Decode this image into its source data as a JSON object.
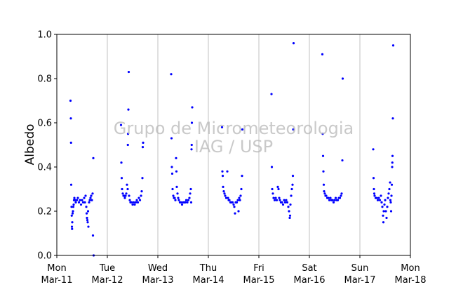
{
  "chart_data": {
    "type": "scatter",
    "title": "",
    "ylabel": "Albedo",
    "xlabel": "",
    "ylim": [
      0,
      1.0
    ],
    "xlim": [
      "2019-03-11",
      "2019-03-18"
    ],
    "yticks": [
      "0.0",
      "0.2",
      "0.4",
      "0.6",
      "0.8",
      "1.0"
    ],
    "xticks": [
      {
        "day": "Mon",
        "date": "Mar-11"
      },
      {
        "day": "Tue",
        "date": "Mar-12"
      },
      {
        "day": "Wed",
        "date": "Mar-13"
      },
      {
        "day": "Thu",
        "date": "Mar-14"
      },
      {
        "day": "Fri",
        "date": "Mar-15"
      },
      {
        "day": "Sat",
        "date": "Mar-16"
      },
      {
        "day": "Sun",
        "date": "Mar-17"
      },
      {
        "day": "Mon",
        "date": "Mar-18"
      }
    ],
    "grid": "vertical lines at day boundaries",
    "watermark": [
      "Grupo de Micrometeorologia",
      "IAG / USP"
    ],
    "marker_color": "#0000ff",
    "series": [
      {
        "values": [
          [
            "2019-03-11 06:30",
            0.7
          ],
          [
            "2019-03-11 06:40",
            0.62
          ],
          [
            "2019-03-11 06:45",
            0.51
          ],
          [
            "2019-03-11 06:50",
            0.32
          ],
          [
            "2019-03-11 07:00",
            0.22
          ],
          [
            "2019-03-11 07:05",
            0.18
          ],
          [
            "2019-03-11 07:10",
            0.13
          ],
          [
            "2019-03-11 07:15",
            0.12
          ],
          [
            "2019-03-11 07:20",
            0.15
          ],
          [
            "2019-03-11 07:30",
            0.19
          ],
          [
            "2019-03-11 07:40",
            0.2
          ],
          [
            "2019-03-11 07:50",
            0.22
          ],
          [
            "2019-03-11 08:00",
            0.23
          ],
          [
            "2019-03-11 08:10",
            0.25
          ],
          [
            "2019-03-11 08:20",
            0.26
          ],
          [
            "2019-03-11 08:40",
            0.25
          ],
          [
            "2019-03-11 09:00",
            0.24
          ],
          [
            "2019-03-11 09:30",
            0.25
          ],
          [
            "2019-03-11 10:00",
            0.26
          ],
          [
            "2019-03-11 10:30",
            0.24
          ],
          [
            "2019-03-11 11:00",
            0.25
          ],
          [
            "2019-03-11 11:30",
            0.23
          ],
          [
            "2019-03-11 12:00",
            0.25
          ],
          [
            "2019-03-11 12:30",
            0.24
          ],
          [
            "2019-03-11 13:00",
            0.26
          ],
          [
            "2019-03-11 13:20",
            0.24
          ],
          [
            "2019-03-11 13:40",
            0.27
          ],
          [
            "2019-03-11 14:00",
            0.22
          ],
          [
            "2019-03-11 14:10",
            0.19
          ],
          [
            "2019-03-11 14:20",
            0.17
          ],
          [
            "2019-03-11 14:30",
            0.16
          ],
          [
            "2019-03-11 14:40",
            0.15
          ],
          [
            "2019-03-11 14:50",
            0.2
          ],
          [
            "2019-03-11 15:00",
            0.13
          ],
          [
            "2019-03-11 15:20",
            0.24
          ],
          [
            "2019-03-11 15:40",
            0.25
          ],
          [
            "2019-03-11 16:00",
            0.26
          ],
          [
            "2019-03-11 16:20",
            0.27
          ],
          [
            "2019-03-11 16:40",
            0.25
          ],
          [
            "2019-03-11 17:00",
            0.28
          ],
          [
            "2019-03-11 17:10",
            0.09
          ],
          [
            "2019-03-11 17:20",
            0.44
          ],
          [
            "2019-03-11 17:30",
            0.0
          ],
          [
            "2019-03-12 06:30",
            0.59
          ],
          [
            "2019-03-12 06:40",
            0.42
          ],
          [
            "2019-03-12 06:50",
            0.35
          ],
          [
            "2019-03-12 07:00",
            0.3
          ],
          [
            "2019-03-12 07:20",
            0.28
          ],
          [
            "2019-03-12 07:40",
            0.27
          ],
          [
            "2019-03-12 08:00",
            0.27
          ],
          [
            "2019-03-12 08:20",
            0.26
          ],
          [
            "2019-03-12 08:40",
            0.27
          ],
          [
            "2019-03-12 09:00",
            0.28
          ],
          [
            "2019-03-12 09:20",
            0.32
          ],
          [
            "2019-03-12 09:40",
            0.3
          ],
          [
            "2019-03-12 09:45",
            0.5
          ],
          [
            "2019-03-12 09:50",
            0.55
          ],
          [
            "2019-03-12 10:00",
            0.66
          ],
          [
            "2019-03-12 10:10",
            0.83
          ],
          [
            "2019-03-12 10:20",
            0.27
          ],
          [
            "2019-03-12 10:40",
            0.25
          ],
          [
            "2019-03-12 11:00",
            0.24
          ],
          [
            "2019-03-12 11:30",
            0.24
          ],
          [
            "2019-03-12 12:00",
            0.23
          ],
          [
            "2019-03-12 12:30",
            0.24
          ],
          [
            "2019-03-12 13:00",
            0.23
          ],
          [
            "2019-03-12 13:30",
            0.24
          ],
          [
            "2019-03-12 14:00",
            0.25
          ],
          [
            "2019-03-12 14:30",
            0.24
          ],
          [
            "2019-03-12 15:00",
            0.26
          ],
          [
            "2019-03-12 15:30",
            0.25
          ],
          [
            "2019-03-12 16:00",
            0.27
          ],
          [
            "2019-03-12 16:20",
            0.29
          ],
          [
            "2019-03-12 16:40",
            0.35
          ],
          [
            "2019-03-12 16:50",
            0.49
          ],
          [
            "2019-03-12 17:00",
            0.51
          ],
          [
            "2019-03-13 06:20",
            0.82
          ],
          [
            "2019-03-13 06:30",
            0.53
          ],
          [
            "2019-03-13 06:40",
            0.4
          ],
          [
            "2019-03-13 06:50",
            0.37
          ],
          [
            "2019-03-13 07:00",
            0.3
          ],
          [
            "2019-03-13 07:20",
            0.27
          ],
          [
            "2019-03-13 07:40",
            0.26
          ],
          [
            "2019-03-13 08:00",
            0.26
          ],
          [
            "2019-03-13 08:20",
            0.25
          ],
          [
            "2019-03-13 08:40",
            0.44
          ],
          [
            "2019-03-13 08:50",
            0.38
          ],
          [
            "2019-03-13 09:00",
            0.31
          ],
          [
            "2019-03-13 09:20",
            0.28
          ],
          [
            "2019-03-13 09:40",
            0.26
          ],
          [
            "2019-03-13 10:00",
            0.25
          ],
          [
            "2019-03-13 10:30",
            0.24
          ],
          [
            "2019-03-13 11:00",
            0.24
          ],
          [
            "2019-03-13 11:30",
            0.23
          ],
          [
            "2019-03-13 12:00",
            0.24
          ],
          [
            "2019-03-13 12:30",
            0.24
          ],
          [
            "2019-03-13 13:00",
            0.24
          ],
          [
            "2019-03-13 13:30",
            0.25
          ],
          [
            "2019-03-13 14:00",
            0.24
          ],
          [
            "2019-03-13 14:30",
            0.25
          ],
          [
            "2019-03-13 15:00",
            0.26
          ],
          [
            "2019-03-13 15:20",
            0.28
          ],
          [
            "2019-03-13 15:40",
            0.3
          ],
          [
            "2019-03-13 15:50",
            0.24
          ],
          [
            "2019-03-13 16:00",
            0.48
          ],
          [
            "2019-03-13 16:05",
            0.5
          ],
          [
            "2019-03-13 16:10",
            0.6
          ],
          [
            "2019-03-13 16:20",
            0.67
          ],
          [
            "2019-03-14 06:30",
            0.58
          ],
          [
            "2019-03-14 06:40",
            0.38
          ],
          [
            "2019-03-14 06:50",
            0.36
          ],
          [
            "2019-03-14 07:00",
            0.31
          ],
          [
            "2019-03-14 07:20",
            0.29
          ],
          [
            "2019-03-14 07:40",
            0.28
          ],
          [
            "2019-03-14 08:00",
            0.27
          ],
          [
            "2019-03-14 08:30",
            0.26
          ],
          [
            "2019-03-14 09:00",
            0.38
          ],
          [
            "2019-03-14 09:20",
            0.26
          ],
          [
            "2019-03-14 09:40",
            0.25
          ],
          [
            "2019-03-14 10:00",
            0.25
          ],
          [
            "2019-03-14 10:30",
            0.24
          ],
          [
            "2019-03-14 11:00",
            0.24
          ],
          [
            "2019-03-14 11:30",
            0.24
          ],
          [
            "2019-03-14 12:00",
            0.23
          ],
          [
            "2019-03-14 12:20",
            0.22
          ],
          [
            "2019-03-14 12:40",
            0.19
          ],
          [
            "2019-03-14 13:00",
            0.24
          ],
          [
            "2019-03-14 13:30",
            0.24
          ],
          [
            "2019-03-14 14:00",
            0.25
          ],
          [
            "2019-03-14 14:20",
            0.2
          ],
          [
            "2019-03-14 14:40",
            0.26
          ],
          [
            "2019-03-14 15:00",
            0.25
          ],
          [
            "2019-03-14 15:20",
            0.27
          ],
          [
            "2019-03-14 15:40",
            0.3
          ],
          [
            "2019-03-14 16:00",
            0.36
          ],
          [
            "2019-03-14 16:10",
            0.57
          ],
          [
            "2019-03-15 06:00",
            0.73
          ],
          [
            "2019-03-15 06:10",
            0.4
          ],
          [
            "2019-03-15 06:20",
            0.3
          ],
          [
            "2019-03-15 06:40",
            0.28
          ],
          [
            "2019-03-15 07:00",
            0.26
          ],
          [
            "2019-03-15 07:30",
            0.25
          ],
          [
            "2019-03-15 08:00",
            0.26
          ],
          [
            "2019-03-15 08:30",
            0.25
          ],
          [
            "2019-03-15 09:00",
            0.31
          ],
          [
            "2019-03-15 09:20",
            0.3
          ],
          [
            "2019-03-15 09:40",
            0.26
          ],
          [
            "2019-03-15 10:00",
            0.25
          ],
          [
            "2019-03-15 10:30",
            0.24
          ],
          [
            "2019-03-15 11:00",
            0.24
          ],
          [
            "2019-03-15 11:30",
            0.23
          ],
          [
            "2019-03-15 12:00",
            0.25
          ],
          [
            "2019-03-15 12:30",
            0.24
          ],
          [
            "2019-03-15 13:00",
            0.25
          ],
          [
            "2019-03-15 13:30",
            0.24
          ],
          [
            "2019-03-15 14:00",
            0.22
          ],
          [
            "2019-03-15 14:20",
            0.2
          ],
          [
            "2019-03-15 14:40",
            0.17
          ],
          [
            "2019-03-15 14:50",
            0.18
          ],
          [
            "2019-03-15 15:00",
            0.23
          ],
          [
            "2019-03-15 15:20",
            0.27
          ],
          [
            "2019-03-15 15:40",
            0.3
          ],
          [
            "2019-03-15 16:00",
            0.32
          ],
          [
            "2019-03-15 16:10",
            0.36
          ],
          [
            "2019-03-15 16:20",
            0.57
          ],
          [
            "2019-03-15 16:30",
            0.96
          ],
          [
            "2019-03-16 06:10",
            0.91
          ],
          [
            "2019-03-16 06:20",
            0.55
          ],
          [
            "2019-03-16 06:30",
            0.45
          ],
          [
            "2019-03-16 06:40",
            0.38
          ],
          [
            "2019-03-16 06:50",
            0.32
          ],
          [
            "2019-03-16 07:00",
            0.29
          ],
          [
            "2019-03-16 07:20",
            0.28
          ],
          [
            "2019-03-16 07:40",
            0.27
          ],
          [
            "2019-03-16 08:00",
            0.27
          ],
          [
            "2019-03-16 08:30",
            0.26
          ],
          [
            "2019-03-16 09:00",
            0.26
          ],
          [
            "2019-03-16 09:30",
            0.25
          ],
          [
            "2019-03-16 10:00",
            0.26
          ],
          [
            "2019-03-16 10:30",
            0.25
          ],
          [
            "2019-03-16 11:00",
            0.25
          ],
          [
            "2019-03-16 11:30",
            0.24
          ],
          [
            "2019-03-16 12:00",
            0.25
          ],
          [
            "2019-03-16 12:30",
            0.26
          ],
          [
            "2019-03-16 13:00",
            0.25
          ],
          [
            "2019-03-16 13:30",
            0.25
          ],
          [
            "2019-03-16 14:00",
            0.26
          ],
          [
            "2019-03-16 14:30",
            0.26
          ],
          [
            "2019-03-16 15:00",
            0.27
          ],
          [
            "2019-03-16 15:20",
            0.28
          ],
          [
            "2019-03-16 15:40",
            0.43
          ],
          [
            "2019-03-16 15:50",
            0.8
          ],
          [
            "2019-03-17 06:20",
            0.48
          ],
          [
            "2019-03-17 06:30",
            0.35
          ],
          [
            "2019-03-17 06:40",
            0.3
          ],
          [
            "2019-03-17 06:50",
            0.28
          ],
          [
            "2019-03-17 07:00",
            0.27
          ],
          [
            "2019-03-17 07:30",
            0.26
          ],
          [
            "2019-03-17 08:00",
            0.26
          ],
          [
            "2019-03-17 08:30",
            0.25
          ],
          [
            "2019-03-17 09:00",
            0.26
          ],
          [
            "2019-03-17 09:30",
            0.25
          ],
          [
            "2019-03-17 10:00",
            0.27
          ],
          [
            "2019-03-17 10:20",
            0.24
          ],
          [
            "2019-03-17 10:40",
            0.22
          ],
          [
            "2019-03-17 11:00",
            0.18
          ],
          [
            "2019-03-17 11:10",
            0.15
          ],
          [
            "2019-03-17 11:20",
            0.2
          ],
          [
            "2019-03-17 11:40",
            0.23
          ],
          [
            "2019-03-17 12:00",
            0.25
          ],
          [
            "2019-03-17 12:20",
            0.2
          ],
          [
            "2019-03-17 12:40",
            0.17
          ],
          [
            "2019-03-17 13:00",
            0.22
          ],
          [
            "2019-03-17 13:20",
            0.26
          ],
          [
            "2019-03-17 13:40",
            0.28
          ],
          [
            "2019-03-17 14:00",
            0.3
          ],
          [
            "2019-03-17 14:20",
            0.33
          ],
          [
            "2019-03-17 14:30",
            0.25
          ],
          [
            "2019-03-17 14:40",
            0.24
          ],
          [
            "2019-03-17 14:50",
            0.2
          ],
          [
            "2019-03-17 15:00",
            0.27
          ],
          [
            "2019-03-17 15:10",
            0.32
          ],
          [
            "2019-03-17 15:20",
            0.4
          ],
          [
            "2019-03-17 15:25",
            0.42
          ],
          [
            "2019-03-17 15:30",
            0.45
          ],
          [
            "2019-03-17 15:40",
            0.62
          ],
          [
            "2019-03-17 15:50",
            0.95
          ]
        ]
      }
    ]
  }
}
